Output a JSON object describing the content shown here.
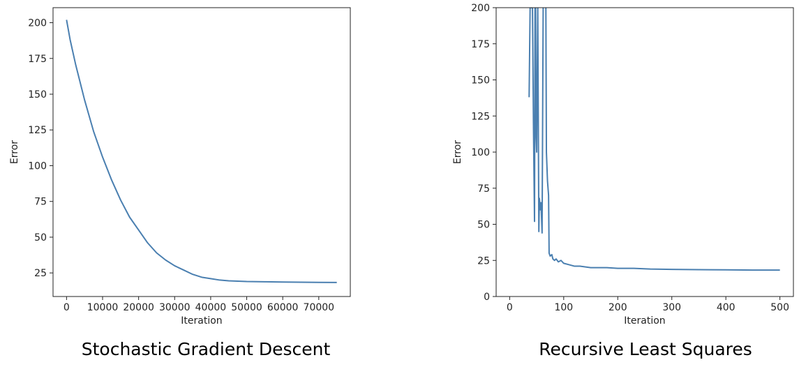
{
  "chart_data": [
    {
      "type": "line",
      "caption": "Stochastic Gradient Descent",
      "xlabel": "Iteration",
      "ylabel": "Error",
      "xlim": [
        -3750,
        78750
      ],
      "ylim": [
        8.5,
        210.5
      ],
      "xticks": [
        0,
        10000,
        20000,
        30000,
        40000,
        50000,
        60000,
        70000
      ],
      "xtick_labels": [
        "0",
        "10000",
        "20000",
        "30000",
        "40000",
        "50000",
        "60000",
        "70000"
      ],
      "yticks": [
        25,
        50,
        75,
        100,
        125,
        150,
        175,
        200
      ],
      "ytick_labels": [
        "25",
        "50",
        "75",
        "100",
        "125",
        "150",
        "175",
        "200"
      ],
      "line_color": "#4a7fb0",
      "series": [
        {
          "x": [
            0,
            1000,
            2500,
            5000,
            7500,
            10000,
            12500,
            15000,
            17500,
            20000,
            22500,
            25000,
            27500,
            30000,
            32500,
            35000,
            37500,
            40000,
            42500,
            45000,
            50000,
            55000,
            60000,
            65000,
            70000,
            75000
          ],
          "values": [
            202,
            188,
            171,
            146,
            124,
            106,
            90,
            76,
            64,
            55,
            46,
            39,
            34,
            30,
            27,
            24,
            22,
            21,
            20,
            19.5,
            19,
            18.8,
            18.6,
            18.5,
            18.4,
            18.3
          ]
        }
      ]
    },
    {
      "type": "line",
      "caption": "Recursive Least Squares",
      "xlabel": "Iteration",
      "ylabel": "Error",
      "xlim": [
        -25,
        525
      ],
      "ylim": [
        0,
        200
      ],
      "xticks": [
        0,
        100,
        200,
        300,
        400,
        500
      ],
      "xtick_labels": [
        "0",
        "100",
        "200",
        "300",
        "400",
        "500"
      ],
      "yticks": [
        0,
        25,
        50,
        75,
        100,
        125,
        150,
        175,
        200
      ],
      "ytick_labels": [
        "0",
        "25",
        "50",
        "75",
        "100",
        "125",
        "150",
        "175",
        "200"
      ],
      "line_color": "#4a7fb0",
      "series": [
        {
          "x": [
            36,
            38,
            40,
            42,
            44,
            46,
            47,
            48,
            49,
            50,
            52,
            54,
            55,
            57,
            58,
            60,
            62,
            64,
            66,
            67,
            68,
            70,
            72,
            73,
            75,
            78,
            80,
            83,
            86,
            90,
            95,
            100,
            110,
            120,
            130,
            150,
            180,
            200,
            230,
            260,
            300,
            350,
            400,
            450,
            500
          ],
          "values": [
            138,
            205,
            200,
            210,
            120,
            52,
            210,
            200,
            110,
            100,
            200,
            45,
            68,
            60,
            65,
            44,
            200,
            205,
            210,
            200,
            100,
            80,
            70,
            30,
            28,
            29,
            26,
            25,
            26,
            24,
            25,
            23,
            22,
            21,
            21,
            20,
            20,
            19.5,
            19.5,
            19,
            18.8,
            18.6,
            18.5,
            18.3,
            18.3
          ]
        }
      ]
    }
  ]
}
